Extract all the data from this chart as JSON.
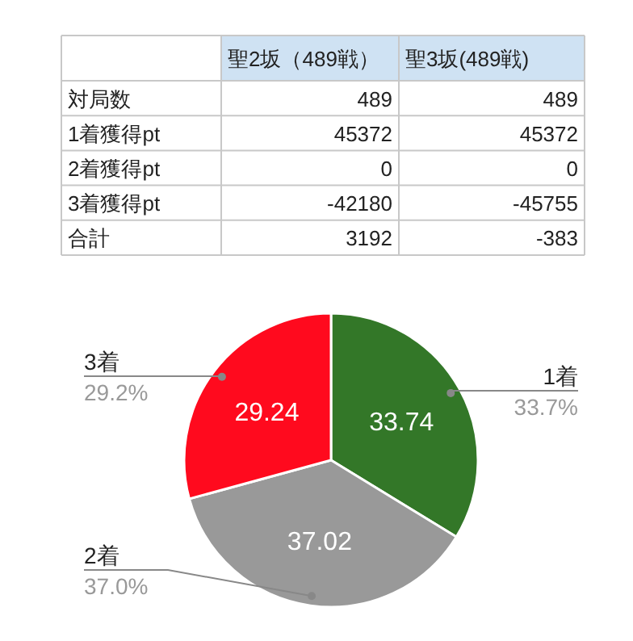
{
  "chart_data": [
    {
      "type": "other",
      "categories": [
        null,
        "聖2坂（489戦）",
        "聖3坂(489戦)"
      ],
      "y_categories": [
        "対局数",
        "1着獲得pt",
        "2着獲得pt",
        "3着獲得pt",
        "合計"
      ],
      "cell_labels": [
        [
          "489",
          "489"
        ],
        [
          "45372",
          "45372"
        ],
        [
          "0",
          "0"
        ],
        [
          "-42180",
          "-45755"
        ],
        [
          "3192",
          "-383"
        ]
      ]
    },
    {
      "type": "pie",
      "categories": [
        "1着",
        "2着",
        "3着"
      ],
      "values": [
        33.74,
        37.02,
        29.24
      ],
      "colors": [
        "#337728",
        "#999999",
        "#ff0a1e"
      ],
      "data_labels": true,
      "annotations": [
        "33.7%",
        "37.0%",
        "29.2%"
      ]
    }
  ]
}
